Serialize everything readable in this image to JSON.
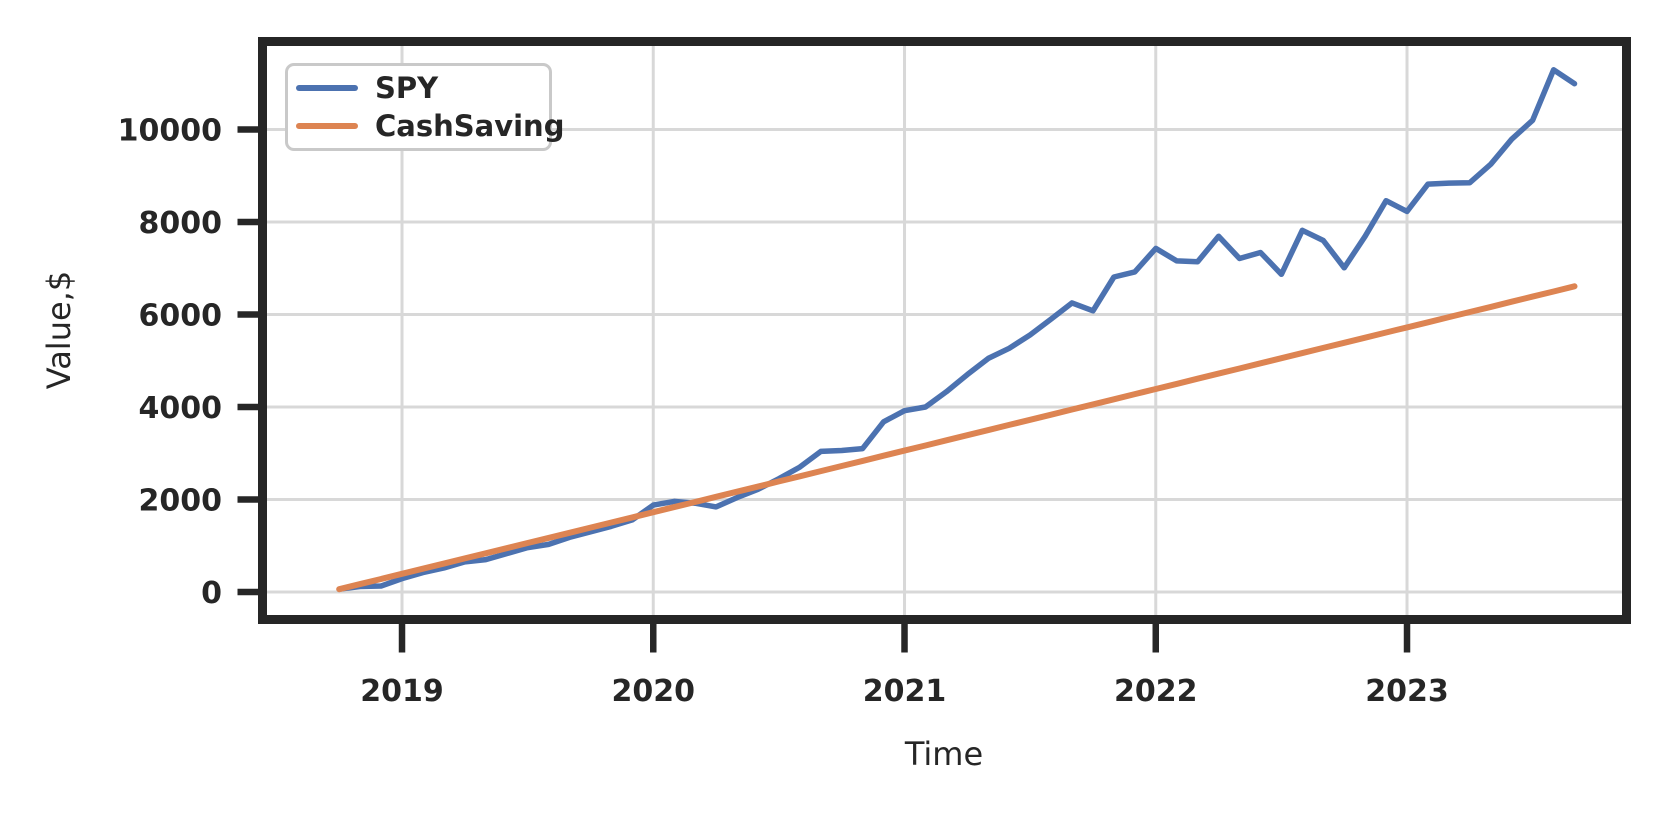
{
  "figure": {
    "background": "#ffffff",
    "frame_color": "#262626",
    "grid_color": "#d8d8d8",
    "tick_label_color": "#262626"
  },
  "axes": {
    "xlabel": "Time",
    "ylabel": "Value,$"
  },
  "legend": {
    "items": [
      {
        "label": "SPY"
      },
      {
        "label": "CashSaving"
      }
    ]
  },
  "chart_data": {
    "type": "line",
    "title": "",
    "xlabel": "Time",
    "ylabel": "Value,$",
    "grid": true,
    "legend_position": "upper-left",
    "x_tick_labels": [
      "2019",
      "2020",
      "2021",
      "2022",
      "2023"
    ],
    "y_ticks": [
      0,
      2000,
      4000,
      6000,
      8000,
      10000
    ],
    "ylim": [
      -500,
      11800
    ],
    "x": [
      "2018-10",
      "2018-11",
      "2018-12",
      "2019-01",
      "2019-02",
      "2019-03",
      "2019-04",
      "2019-05",
      "2019-06",
      "2019-07",
      "2019-08",
      "2019-09",
      "2019-10",
      "2019-11",
      "2019-12",
      "2020-01",
      "2020-02",
      "2020-03",
      "2020-04",
      "2020-05",
      "2020-06",
      "2020-07",
      "2020-08",
      "2020-09",
      "2020-10",
      "2020-11",
      "2020-12",
      "2021-01",
      "2021-02",
      "2021-03",
      "2021-04",
      "2021-05",
      "2021-06",
      "2021-07",
      "2021-08",
      "2021-09",
      "2021-10",
      "2021-11",
      "2021-12",
      "2022-01",
      "2022-02",
      "2022-03",
      "2022-04",
      "2022-05",
      "2022-06",
      "2022-07",
      "2022-08",
      "2022-09",
      "2022-10",
      "2022-11",
      "2022-12",
      "2023-01",
      "2023-02",
      "2023-03",
      "2023-04",
      "2023-05",
      "2023-06",
      "2023-07",
      "2023-08",
      "2023-09"
    ],
    "series": [
      {
        "name": "SPY",
        "color": "#4C72B0",
        "values": [
          60,
          120,
          130,
          290,
          420,
          520,
          650,
          700,
          830,
          960,
          1030,
          1180,
          1300,
          1420,
          1560,
          1880,
          1960,
          1920,
          1840,
          2040,
          2220,
          2450,
          2700,
          3040,
          3060,
          3100,
          3680,
          3920,
          4000,
          4330,
          4700,
          5050,
          5270,
          5560,
          5900,
          6250,
          6080,
          6810,
          6920,
          7430,
          7160,
          7140,
          7690,
          7210,
          7340,
          6870,
          7820,
          7600,
          7010,
          7690,
          8460,
          8230,
          8820,
          8840,
          8850,
          9250,
          9790,
          10200,
          11290,
          10990
        ]
      },
      {
        "name": "CashSaving",
        "color": "#DD8452",
        "values": [
          60,
          171,
          282,
          393,
          504,
          615,
          726,
          837,
          948,
          1059,
          1170,
          1281,
          1392,
          1503,
          1614,
          1725,
          1836,
          1947,
          2058,
          2169,
          2280,
          2391,
          2502,
          2613,
          2724,
          2835,
          2946,
          3057,
          3168,
          3279,
          3390,
          3501,
          3612,
          3723,
          3834,
          3945,
          4056,
          4167,
          4278,
          4389,
          4500,
          4611,
          4722,
          4833,
          4944,
          5055,
          5166,
          5277,
          5388,
          5499,
          5610,
          5721,
          5832,
          5943,
          6054,
          6165,
          6276,
          6387,
          6498,
          6609
        ]
      }
    ]
  }
}
